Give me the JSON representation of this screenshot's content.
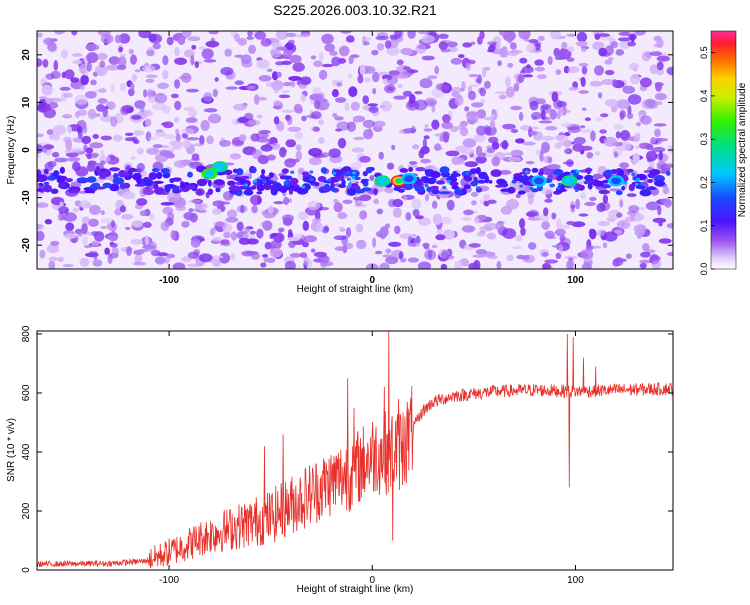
{
  "title": "S225.2026.003.10.32.R21",
  "chart_data": [
    {
      "type": "heatmap",
      "xlabel": "Height of straight line (km)",
      "ylabel": "Frequency (Hz)",
      "xlim": [
        -165,
        148
      ],
      "ylim": [
        -25,
        25
      ],
      "xticks": [
        -100,
        0,
        100
      ],
      "yticks": [
        -20,
        -10,
        0,
        10,
        20
      ],
      "colorbar": {
        "label": "Normalized spectral amplitude",
        "range": [
          0.0,
          0.55
        ],
        "ticks": [
          "0.0",
          "0.1",
          "0.2",
          "0.3",
          "0.4",
          "0.5"
        ]
      },
      "signal_band": {
        "frequency_center": -6.5,
        "frequency_halfwidth": 2.5
      },
      "hotspots": [
        {
          "x": -80,
          "y": -5,
          "amplitude": 0.32
        },
        {
          "x": -75,
          "y": -3.5,
          "amplitude": 0.25
        },
        {
          "x": 5,
          "y": -6.5,
          "amplitude": 0.28
        },
        {
          "x": 13,
          "y": -6.5,
          "amplitude": 0.45
        },
        {
          "x": 18,
          "y": -6,
          "amplitude": 0.22
        },
        {
          "x": 97,
          "y": -6.5,
          "amplitude": 0.3
        },
        {
          "x": 82,
          "y": -6.5,
          "amplitude": 0.2
        },
        {
          "x": 120,
          "y": -6.5,
          "amplitude": 0.18
        }
      ]
    },
    {
      "type": "line",
      "xlabel": "Height of straight line (km)",
      "ylabel": "SNR (10 * v/v)",
      "xlim": [
        -165,
        148
      ],
      "ylim": [
        0,
        810
      ],
      "xticks": [
        -100,
        0,
        100
      ],
      "yticks": [
        0,
        200,
        400,
        600,
        800
      ],
      "color": "#e8302a",
      "series_profile": [
        [
          -165,
          20
        ],
        [
          -130,
          22
        ],
        [
          -112,
          30
        ],
        [
          -100,
          60
        ],
        [
          -90,
          90
        ],
        [
          -80,
          120
        ],
        [
          -70,
          140
        ],
        [
          -60,
          160
        ],
        [
          -50,
          180
        ],
        [
          -40,
          220
        ],
        [
          -30,
          260
        ],
        [
          -20,
          300
        ],
        [
          -10,
          330
        ],
        [
          0,
          390
        ],
        [
          8,
          400
        ],
        [
          15,
          420
        ],
        [
          20,
          480
        ],
        [
          25,
          540
        ],
        [
          30,
          570
        ],
        [
          40,
          590
        ],
        [
          60,
          605
        ],
        [
          80,
          610
        ],
        [
          100,
          605
        ],
        [
          120,
          610
        ],
        [
          148,
          615
        ]
      ],
      "spikes": [
        [
          -53,
          420
        ],
        [
          -44,
          460
        ],
        [
          -12,
          650
        ],
        [
          -9,
          550
        ],
        [
          -2,
          410
        ],
        [
          6,
          620
        ],
        [
          8,
          810
        ],
        [
          10,
          100
        ],
        [
          13,
          580
        ],
        [
          16,
          520
        ],
        [
          96,
          800
        ],
        [
          97,
          280
        ],
        [
          99,
          790
        ],
        [
          104,
          720
        ],
        [
          110,
          690
        ]
      ]
    }
  ]
}
